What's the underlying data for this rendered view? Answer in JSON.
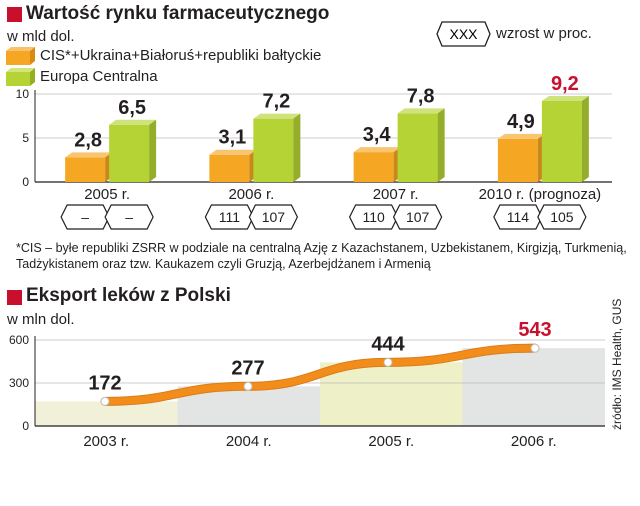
{
  "chart_data": [
    {
      "type": "bar",
      "title": "Wartość rynku farmaceutycznego",
      "ylabel": "w mld dol.",
      "ylim": [
        0,
        10
      ],
      "yticks": [
        0,
        5,
        10
      ],
      "categories": [
        "2005 r.",
        "2006 r.",
        "2007 r.",
        "2010 r. (prognoza)"
      ],
      "series": [
        {
          "name": "CIS*+Ukraina+Białoruś+republiki bałtyckie",
          "color": "#f5a623",
          "values": [
            2.8,
            3.1,
            3.4,
            4.9
          ],
          "labels": [
            "2,8",
            "3,1",
            "3,4",
            "4,9"
          ],
          "growth": [
            "–",
            "111",
            "110",
            "114"
          ]
        },
        {
          "name": "Europa Centralna",
          "color": "#b5d334",
          "values": [
            6.5,
            7.2,
            7.8,
            9.2
          ],
          "labels": [
            "6,5",
            "7,2",
            "7,8",
            "9,2"
          ],
          "growth": [
            "–",
            "107",
            "107",
            "105"
          ]
        }
      ],
      "highlight_color": "#c8102e",
      "legend_growth": {
        "box": "XXX",
        "text": "wzrost w proc."
      },
      "grid": true,
      "legend_position": "top"
    },
    {
      "type": "line",
      "title": "Eksport leków z Polski",
      "ylabel": "w mln dol.",
      "ylim": [
        0,
        600
      ],
      "yticks": [
        0,
        300,
        600
      ],
      "categories": [
        "2003 r.",
        "2004 r.",
        "2005 r.",
        "2006 r."
      ],
      "values": [
        172,
        277,
        444,
        543
      ],
      "labels": [
        "172",
        "277",
        "444",
        "543"
      ],
      "line_color": "#f28c1b",
      "highlight_color": "#c8102e",
      "grid": true
    }
  ],
  "footnote": "*CIS – byłe republiki ZSRR w podziale na centralną Azję z Kazachstanem, Uzbekistanem, Kirgizją, Turkmenią, Tadżykistanem oraz tzw. Kaukazem czyli Gruzją, Azerbejdżanem i Armenią",
  "source": "źródło: IMS Health, GUS"
}
